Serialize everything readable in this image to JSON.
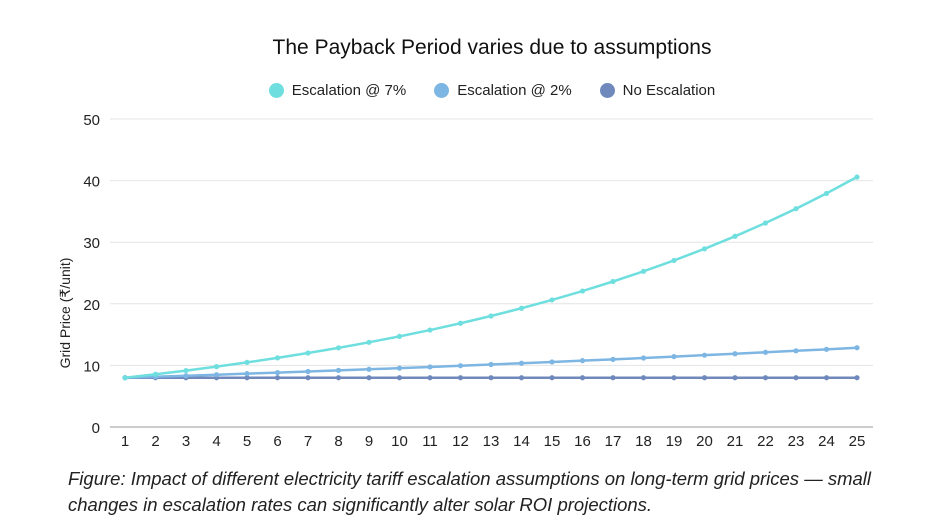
{
  "chart_data": {
    "type": "line",
    "title": "The Payback Period varies due to assumptions",
    "xlabel": "",
    "ylabel": "Grid Price (₹/unit)",
    "ylim": [
      0,
      50
    ],
    "yticks": [
      0,
      10,
      20,
      30,
      40,
      50
    ],
    "grid": true,
    "legend_position": "top",
    "x": [
      1,
      2,
      3,
      4,
      5,
      6,
      7,
      8,
      9,
      10,
      11,
      12,
      13,
      14,
      15,
      16,
      17,
      18,
      19,
      20,
      21,
      22,
      23,
      24,
      25
    ],
    "series": [
      {
        "name": "Escalation @ 7%",
        "color": "#6fdede",
        "values": [
          8.0,
          8.56,
          9.16,
          9.8,
          10.49,
          11.22,
          12.01,
          12.85,
          13.75,
          14.71,
          15.74,
          16.84,
          18.02,
          19.28,
          20.63,
          22.07,
          23.62,
          25.27,
          27.04,
          28.93,
          30.96,
          33.12,
          35.44,
          37.92,
          40.58
        ]
      },
      {
        "name": "Escalation @ 2%",
        "color": "#7db6e3",
        "values": [
          8.0,
          8.16,
          8.32,
          8.49,
          8.66,
          8.83,
          9.01,
          9.19,
          9.37,
          9.56,
          9.75,
          9.95,
          10.15,
          10.35,
          10.56,
          10.77,
          10.98,
          11.2,
          11.43,
          11.66,
          11.89,
          12.13,
          12.37,
          12.61,
          12.87
        ]
      },
      {
        "name": "No Escalation",
        "color": "#7089bd",
        "values": [
          8,
          8,
          8,
          8,
          8,
          8,
          8,
          8,
          8,
          8,
          8,
          8,
          8,
          8,
          8,
          8,
          8,
          8,
          8,
          8,
          8,
          8,
          8,
          8,
          8
        ]
      }
    ]
  },
  "caption": "Figure: Impact of different electricity tariff escalation assumptions on long-term grid prices — small changes in escalation rates can significantly alter solar ROI projections."
}
